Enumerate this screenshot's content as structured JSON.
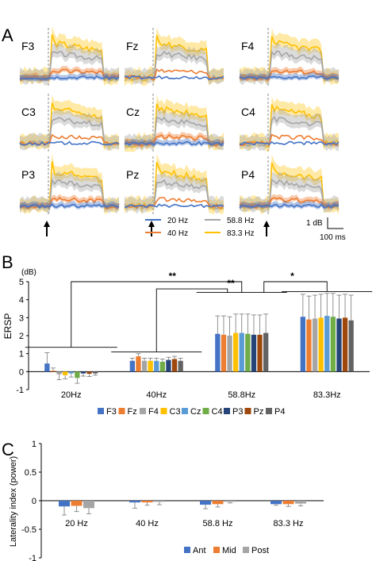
{
  "panels": {
    "A": "A",
    "B": "B",
    "C": "C"
  },
  "colors": {
    "hz20": "#4472C4",
    "hz40": "#ED7D31",
    "hz58": "#A5A5A5",
    "hz83": "#FFC000",
    "F3": "#4472C4",
    "Fz": "#ED7D31",
    "F4": "#A5A5A5",
    "C3": "#FFC000",
    "Cz": "#5B9BD5",
    "C4": "#70AD47",
    "P3": "#264478",
    "Pz": "#9E480E",
    "P4": "#636363",
    "Ant": "#4472C4",
    "Mid": "#ED7D31",
    "Post": "#A5A5A5"
  },
  "panel_a": {
    "electrodes": [
      "F3",
      "Fz",
      "F4",
      "C3",
      "Cz",
      "C4",
      "P3",
      "Pz",
      "P4"
    ],
    "legend": [
      "20 Hz",
      "58.8 Hz",
      "40 Hz",
      "83.3 Hz"
    ],
    "scale_db": "1 dB",
    "scale_ms": "100 ms"
  },
  "chart_data": [
    {
      "type": "line",
      "panel": "A",
      "title": "",
      "series": [
        {
          "name": "20 Hz",
          "amplitude_db": 0.05
        },
        {
          "name": "40 Hz",
          "amplitude_db": 0.6
        },
        {
          "name": "58.8 Hz",
          "amplitude_db": 2.1
        },
        {
          "name": "83.3 Hz",
          "amplitude_db": 3.0
        }
      ]
    },
    {
      "type": "bar",
      "panel": "B",
      "ylabel": "ERSP",
      "yunit": "(dB)",
      "ylim": [
        -1,
        5
      ],
      "yticks": [
        "-1",
        "0",
        "1",
        "2",
        "3",
        "4",
        "5"
      ],
      "categories": [
        "20Hz",
        "40Hz",
        "58.8Hz",
        "83.3Hz"
      ],
      "series": [
        {
          "name": "F3",
          "values": [
            0.45,
            0.6,
            2.1,
            3.05
          ],
          "errors": [
            0.6,
            0.15,
            1.0,
            1.25
          ]
        },
        {
          "name": "Fz",
          "values": [
            0.05,
            0.85,
            2.05,
            2.9
          ],
          "errors": [
            0.15,
            0.15,
            1.05,
            1.3
          ]
        },
        {
          "name": "F4",
          "values": [
            -0.15,
            0.6,
            2.0,
            2.95
          ],
          "errors": [
            0.3,
            0.15,
            1.05,
            1.3
          ]
        },
        {
          "name": "C3",
          "values": [
            -0.2,
            0.6,
            2.15,
            3.0
          ],
          "errors": [
            0.2,
            0.15,
            1.05,
            1.3
          ]
        },
        {
          "name": "Cz",
          "values": [
            -0.1,
            0.6,
            2.15,
            3.1
          ],
          "errors": [
            0.2,
            0.15,
            1.05,
            1.25
          ]
        },
        {
          "name": "C4",
          "values": [
            -0.35,
            0.55,
            2.1,
            3.05
          ],
          "errors": [
            0.3,
            0.15,
            1.1,
            1.3
          ]
        },
        {
          "name": "P3",
          "values": [
            -0.1,
            0.65,
            2.05,
            2.95
          ],
          "errors": [
            0.15,
            0.15,
            1.1,
            1.3
          ]
        },
        {
          "name": "Pz",
          "values": [
            -0.12,
            0.7,
            2.05,
            3.0
          ],
          "errors": [
            0.15,
            0.15,
            1.1,
            1.3
          ]
        },
        {
          "name": "P4",
          "values": [
            -0.1,
            0.6,
            2.15,
            2.85
          ],
          "errors": [
            0.1,
            0.15,
            1.05,
            1.4
          ]
        }
      ],
      "significance": [
        "**",
        "**",
        "*"
      ]
    },
    {
      "type": "bar",
      "panel": "C",
      "ylabel": "Laterality index (power)",
      "ylim": [
        -1,
        1
      ],
      "yticks": [
        "-1",
        "-0.5",
        "0",
        "0.5",
        "1"
      ],
      "categories": [
        "20 Hz",
        "40 Hz",
        "58.8 Hz",
        "83.3 Hz"
      ],
      "series": [
        {
          "name": "Ant",
          "values": [
            -0.1,
            -0.03,
            -0.07,
            -0.06
          ],
          "errors": [
            0.15,
            0.1,
            0.07,
            0.02
          ]
        },
        {
          "name": "Mid",
          "values": [
            -0.09,
            -0.03,
            -0.06,
            -0.06
          ],
          "errors": [
            0.1,
            0.05,
            0.05,
            0.04
          ]
        },
        {
          "name": "Post",
          "values": [
            -0.13,
            -0.02,
            -0.02,
            -0.05
          ],
          "errors": [
            0.1,
            0.05,
            0.02,
            0.04
          ]
        }
      ]
    }
  ]
}
